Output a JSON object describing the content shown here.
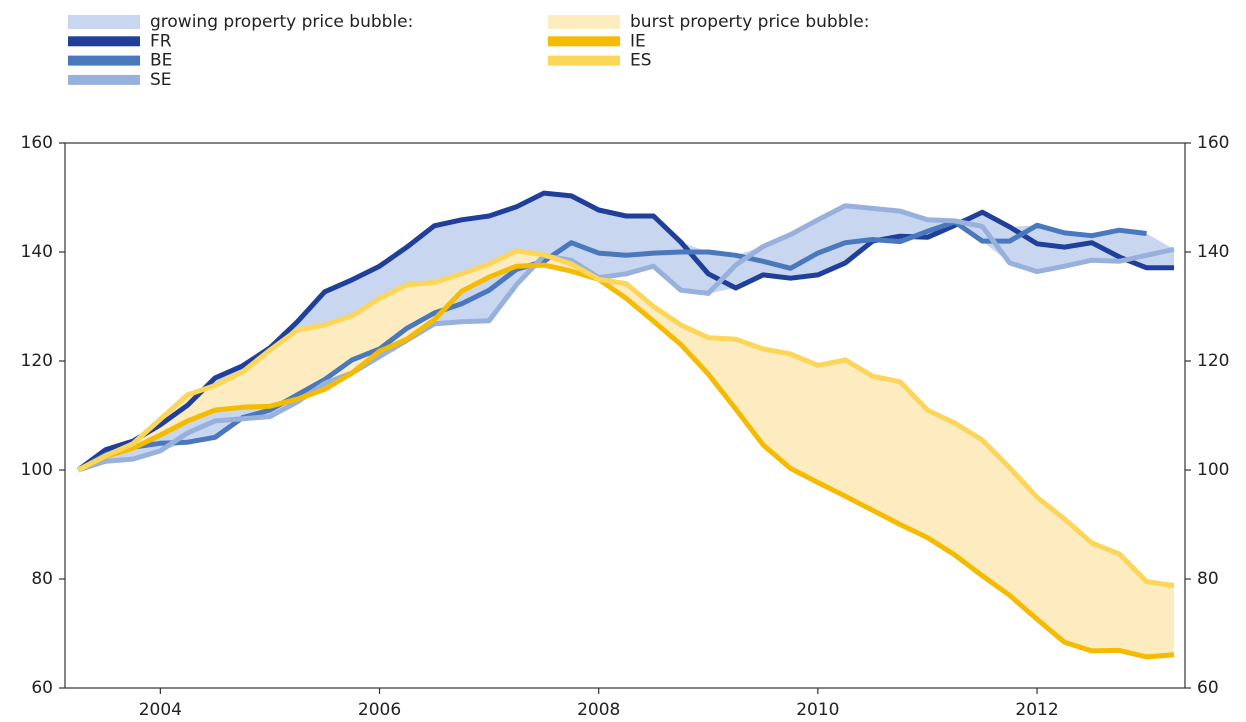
{
  "chart_data": {
    "type": "line",
    "x": [
      2003.25,
      2003.5,
      2003.75,
      2004,
      2004.25,
      2004.5,
      2004.75,
      2005,
      2005.25,
      2005.5,
      2005.75,
      2006,
      2006.25,
      2006.5,
      2006.75,
      2007,
      2007.25,
      2007.5,
      2007.75,
      2008,
      2008.25,
      2008.5,
      2008.75,
      2009,
      2009.25,
      2009.5,
      2009.75,
      2010,
      2010.25,
      2010.5,
      2010.75,
      2011,
      2011.25,
      2011.5,
      2011.75,
      2012,
      2012.25,
      2012.5,
      2012.75,
      2013,
      2013.25
    ],
    "xlim": [
      2003.13,
      2013.35
    ],
    "xticks": [
      2004,
      2006,
      2008,
      2010,
      2012
    ],
    "ylim": [
      60,
      160
    ],
    "yticks": [
      60,
      80,
      100,
      120,
      140,
      160
    ],
    "y2lim": [
      60,
      160
    ],
    "y2ticks": [
      60,
      80,
      100,
      120,
      140,
      160
    ],
    "bands": [
      {
        "name": "growing property price bubble:",
        "color": "#c9d6f0"
      },
      {
        "name": "burst property price bubble:",
        "color": "#fdecc0"
      }
    ],
    "series": [
      {
        "name": "FR",
        "color": "#1f3f9a",
        "band": 0,
        "values": [
          100,
          103.7,
          105.3,
          108.3,
          111.9,
          116.9,
          119.1,
          122.4,
          127.2,
          132.7,
          134.9,
          137.4,
          140.9,
          144.8,
          145.9,
          146.6,
          148.3,
          150.8,
          150.3,
          147.7,
          146.6,
          146.6,
          141.8,
          136,
          133.4,
          135.8,
          135.2,
          135.8,
          138,
          142,
          142.9,
          142.7,
          144.9,
          147.3,
          144.6,
          141.5,
          140.9,
          141.7,
          139.1,
          137.1,
          137.1
        ]
      },
      {
        "name": "BE",
        "color": "#4a78bd",
        "band": 0,
        "values": [
          100,
          102.8,
          104.2,
          104.9,
          105.1,
          106,
          109.6,
          111,
          113.8,
          116.6,
          120.2,
          122.2,
          126,
          128.8,
          130.5,
          133,
          136.8,
          138.3,
          141.7,
          139.8,
          139.4,
          139.8,
          140,
          140,
          139.4,
          138.3,
          137,
          139.8,
          141.7,
          142.3,
          141.9,
          143.8,
          145.5,
          142,
          142,
          144.9,
          143.5,
          143,
          144,
          143.4,
          null
        ]
      },
      {
        "name": "SE",
        "color": "#98b1dc",
        "band": 0,
        "values": [
          100,
          101.6,
          102,
          103.5,
          106.8,
          109,
          109.4,
          109.8,
          112.5,
          115.9,
          117.8,
          120.8,
          123.8,
          126.8,
          127.2,
          127.4,
          134,
          139.3,
          138.5,
          135.3,
          136,
          137.4,
          133,
          132.4,
          137.6,
          141,
          143.2,
          145.9,
          148.5,
          148,
          147.5,
          145.9,
          145.7,
          144.7,
          138,
          136.4,
          137.4,
          138.5,
          138.3,
          139.4,
          140.5
        ]
      },
      {
        "name": "IE",
        "color": "#f4bb00",
        "band": 1,
        "values": [
          100,
          102.5,
          104,
          106.4,
          109,
          111,
          111.5,
          111.7,
          113,
          114.8,
          117.8,
          121.8,
          124,
          127.6,
          132.8,
          135.4,
          137.4,
          137.6,
          136.5,
          135,
          131.5,
          127.3,
          123,
          117.6,
          111.2,
          104.6,
          100.3,
          97.7,
          95.2,
          92.6,
          90,
          87.6,
          84.4,
          80.6,
          77,
          72.6,
          68.4,
          66.8,
          66.9,
          65.7,
          66.1
        ]
      },
      {
        "name": "ES",
        "color": "#fbd65a",
        "band": 1,
        "values": [
          100,
          102.6,
          104.8,
          109.3,
          113.8,
          115.5,
          118,
          122,
          125.7,
          126.6,
          128.3,
          131.5,
          134,
          134.4,
          136,
          137.8,
          140.2,
          139.5,
          137.8,
          135,
          134.2,
          130,
          126.6,
          124.3,
          124,
          122.2,
          121.3,
          119.2,
          120.2,
          117.2,
          116.2,
          111,
          108.6,
          105.5,
          100.4,
          95,
          91,
          86.6,
          84.6,
          79.5,
          78.8
        ]
      }
    ]
  }
}
